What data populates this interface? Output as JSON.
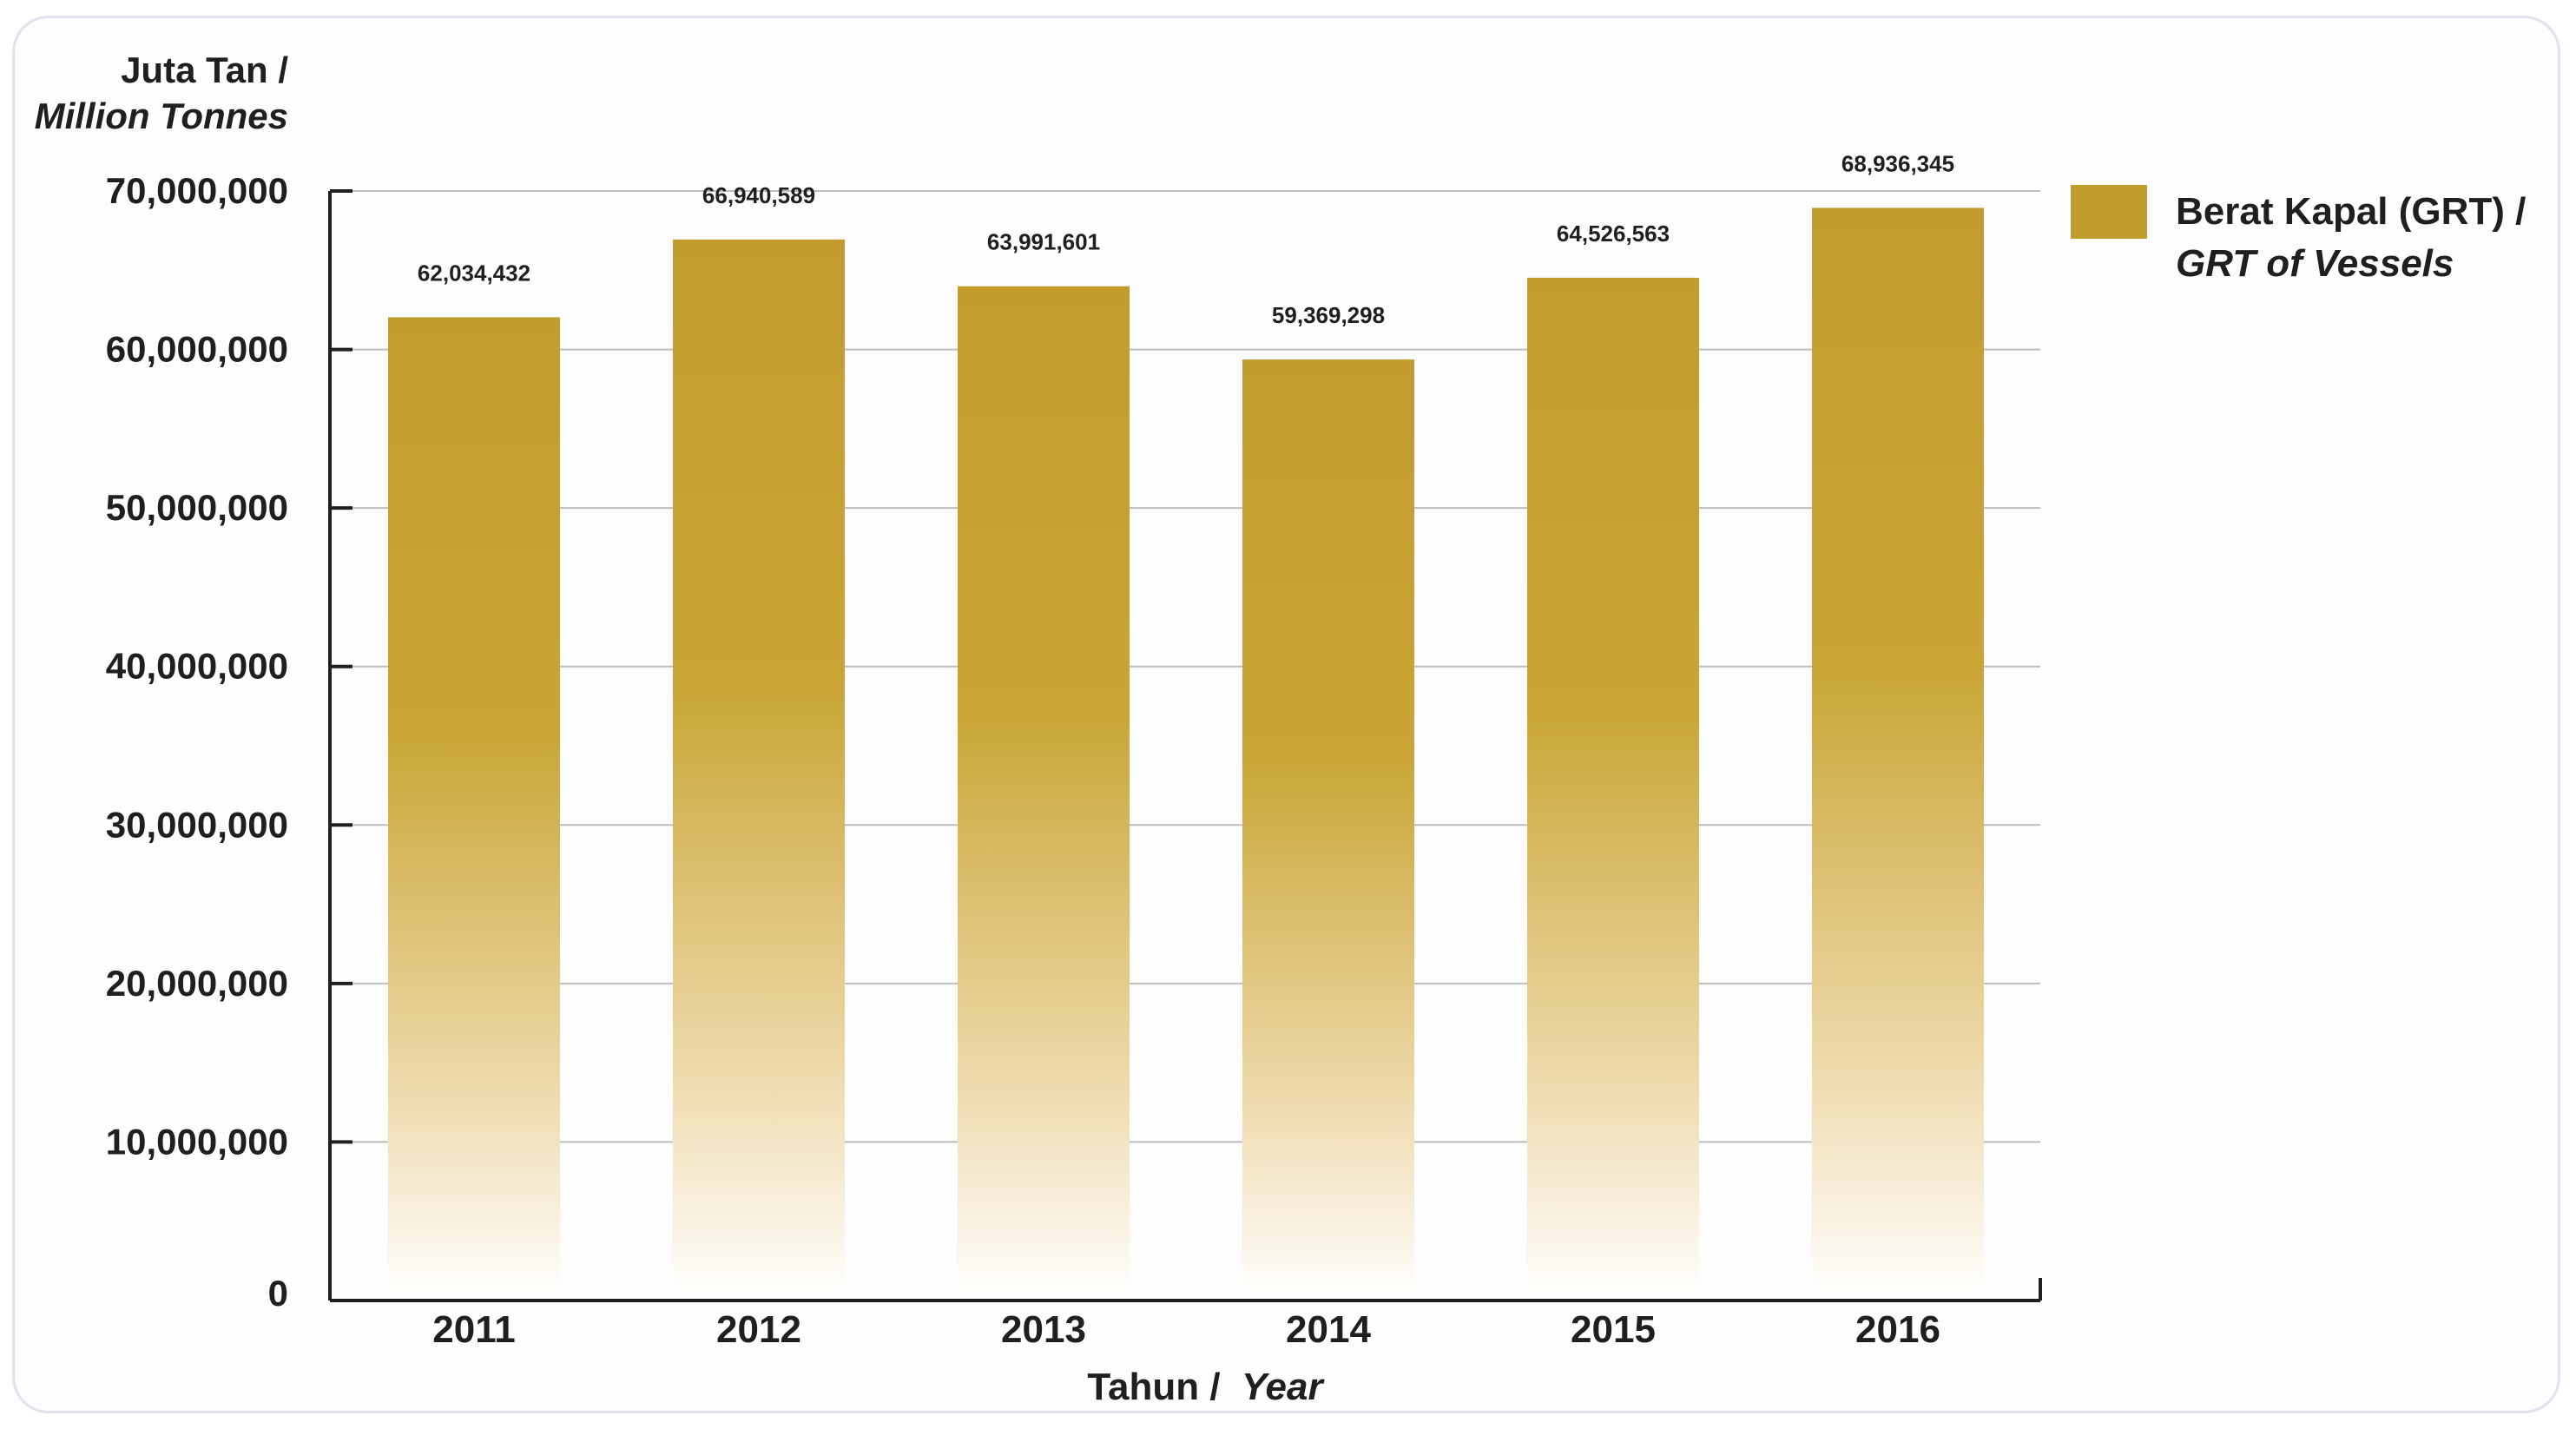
{
  "colors": {
    "bar_top": "#c19d2d",
    "bar_bottom": "#ffffff",
    "axis": "#1f1f1f",
    "grid": "#bdbdbd",
    "text": "#1f1f1f"
  },
  "chart_data": {
    "type": "bar",
    "categories": [
      "2011",
      "2012",
      "2013",
      "2014",
      "2015",
      "2016"
    ],
    "series": [
      {
        "name": "Berat Kapal (GRT) / GRT of Vessels",
        "values": [
          62034432,
          66940589,
          63991601,
          59369298,
          64526563,
          68936345
        ]
      }
    ],
    "data_labels": [
      "62,034,432",
      "66,940,589",
      "63,991,601",
      "59,369,298",
      "64,526,563",
      "68,936,345"
    ],
    "ylabel": {
      "line1": "Juta Tan /",
      "line2": "Million Tonnes"
    },
    "xlabel": {
      "main": "Tahun /",
      "italic": "Year"
    },
    "legend": {
      "line1": "Berat Kapal (GRT) /",
      "line2": "GRT of Vessels",
      "placement": "top-right"
    },
    "yticks": [
      {
        "value": 0,
        "label": "0"
      },
      {
        "value": 10000000,
        "label": "10,000,000"
      },
      {
        "value": 20000000,
        "label": "20,000,000"
      },
      {
        "value": 30000000,
        "label": "30,000,000"
      },
      {
        "value": 40000000,
        "label": "40,000,000"
      },
      {
        "value": 50000000,
        "label": "50,000,000"
      },
      {
        "value": 60000000,
        "label": "60,000,000"
      },
      {
        "value": 70000000,
        "label": "70,000,000"
      }
    ],
    "ylim": [
      0,
      70000000
    ],
    "grid": true
  }
}
